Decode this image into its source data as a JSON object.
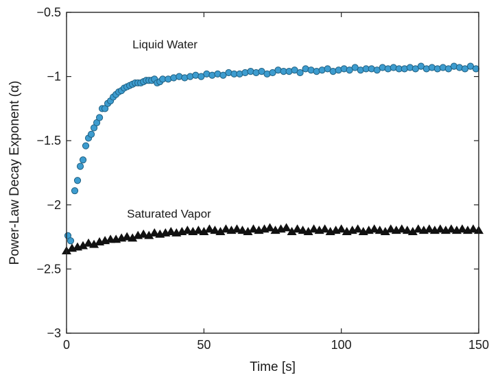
{
  "chart_data": {
    "type": "scatter",
    "title": "",
    "xlabel": "Time [s]",
    "ylabel": "Power-Law Decay Exponent (α)",
    "xlim": [
      0,
      150
    ],
    "ylim": [
      -3,
      -0.5
    ],
    "xticks": [
      0,
      50,
      100,
      150
    ],
    "xtick_labels": [
      "0",
      "50",
      "100",
      "150"
    ],
    "yticks": [
      -3,
      -2.5,
      -2,
      -1.5,
      -1,
      -0.5
    ],
    "ytick_labels": [
      "−3",
      "−2.5",
      "−2",
      "−1.5",
      "−1",
      "−0.5"
    ],
    "grid": false,
    "annotations": [
      {
        "text": "Liquid Water",
        "x": 24,
        "y": -0.78
      },
      {
        "text": "Saturated Vapor",
        "x": 22,
        "y": -2.1
      }
    ],
    "series": [
      {
        "label": "Liquid Water",
        "marker": "circle",
        "color": "#3d9ccf",
        "edge_color": "#1f5f80",
        "x": [
          0.5,
          1.5,
          3,
          4,
          5,
          6,
          7,
          8,
          9,
          10,
          11,
          12,
          13,
          14,
          15,
          16,
          17,
          18,
          19,
          20,
          21,
          22,
          23,
          24,
          25,
          26,
          27,
          28,
          29,
          30,
          31,
          32,
          33,
          34,
          35,
          37,
          39,
          41,
          43,
          45,
          47,
          49,
          51,
          53,
          55,
          57,
          59,
          61,
          63,
          65,
          67,
          69,
          71,
          73,
          75,
          77,
          79,
          81,
          83,
          85,
          87,
          89,
          91,
          93,
          95,
          97,
          99,
          101,
          103,
          105,
          107,
          109,
          111,
          113,
          115,
          117,
          119,
          121,
          123,
          125,
          127,
          129,
          131,
          133,
          135,
          137,
          139,
          141,
          143,
          145,
          147,
          149
        ],
        "y": [
          -2.24,
          -2.28,
          -1.89,
          -1.81,
          -1.7,
          -1.65,
          -1.54,
          -1.48,
          -1.45,
          -1.4,
          -1.36,
          -1.32,
          -1.25,
          -1.25,
          -1.21,
          -1.19,
          -1.16,
          -1.14,
          -1.12,
          -1.11,
          -1.09,
          -1.08,
          -1.07,
          -1.06,
          -1.05,
          -1.05,
          -1.05,
          -1.04,
          -1.03,
          -1.03,
          -1.03,
          -1.02,
          -1.05,
          -1.04,
          -1.02,
          -1.02,
          -1.01,
          -1.0,
          -1.01,
          -1.0,
          -0.99,
          -1.0,
          -0.98,
          -0.99,
          -0.98,
          -0.99,
          -0.97,
          -0.98,
          -0.98,
          -0.97,
          -0.96,
          -0.97,
          -0.96,
          -0.98,
          -0.97,
          -0.95,
          -0.96,
          -0.96,
          -0.95,
          -0.97,
          -0.94,
          -0.95,
          -0.96,
          -0.95,
          -0.94,
          -0.96,
          -0.95,
          -0.94,
          -0.95,
          -0.93,
          -0.95,
          -0.94,
          -0.94,
          -0.95,
          -0.93,
          -0.94,
          -0.93,
          -0.94,
          -0.94,
          -0.93,
          -0.94,
          -0.92,
          -0.94,
          -0.93,
          -0.94,
          -0.93,
          -0.94,
          -0.92,
          -0.93,
          -0.94,
          -0.92,
          -0.94
        ]
      },
      {
        "label": "Saturated Vapor",
        "marker": "triangle",
        "color": "#111111",
        "x": [
          0,
          2,
          4,
          6,
          8,
          10,
          12,
          14,
          16,
          18,
          20,
          22,
          24,
          26,
          28,
          30,
          32,
          34,
          36,
          38,
          40,
          42,
          44,
          46,
          48,
          50,
          52,
          54,
          56,
          58,
          60,
          62,
          64,
          66,
          68,
          70,
          72,
          74,
          76,
          78,
          80,
          82,
          84,
          86,
          88,
          90,
          92,
          94,
          96,
          98,
          100,
          102,
          104,
          106,
          108,
          110,
          112,
          114,
          116,
          118,
          120,
          122,
          124,
          126,
          128,
          130,
          132,
          134,
          136,
          138,
          140,
          142,
          144,
          146,
          148,
          150
        ],
        "y": [
          -2.36,
          -2.34,
          -2.33,
          -2.32,
          -2.3,
          -2.31,
          -2.29,
          -2.28,
          -2.27,
          -2.27,
          -2.26,
          -2.25,
          -2.26,
          -2.24,
          -2.23,
          -2.24,
          -2.22,
          -2.23,
          -2.22,
          -2.21,
          -2.22,
          -2.21,
          -2.2,
          -2.21,
          -2.2,
          -2.21,
          -2.19,
          -2.2,
          -2.21,
          -2.19,
          -2.2,
          -2.19,
          -2.2,
          -2.21,
          -2.19,
          -2.2,
          -2.19,
          -2.18,
          -2.2,
          -2.19,
          -2.18,
          -2.21,
          -2.19,
          -2.2,
          -2.21,
          -2.19,
          -2.2,
          -2.19,
          -2.21,
          -2.2,
          -2.19,
          -2.21,
          -2.2,
          -2.19,
          -2.21,
          -2.2,
          -2.19,
          -2.2,
          -2.21,
          -2.19,
          -2.2,
          -2.19,
          -2.2,
          -2.21,
          -2.19,
          -2.2,
          -2.19,
          -2.2,
          -2.19,
          -2.2,
          -2.19,
          -2.2,
          -2.19,
          -2.2,
          -2.19,
          -2.2
        ]
      }
    ]
  }
}
